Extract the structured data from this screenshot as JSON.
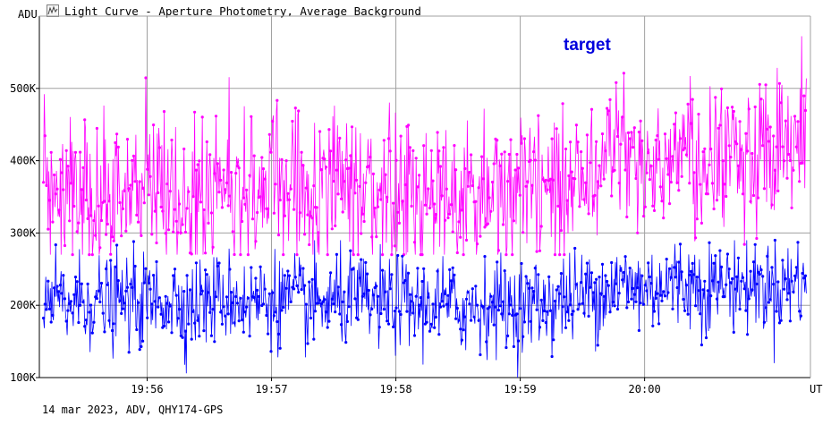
{
  "window": {
    "title": "Light Curve - Aperture Photometry, Average Background",
    "icon": "light-curve-icon"
  },
  "footer": "14 mar 2023, ADV, QHY174-GPS",
  "chart_data": {
    "type": "line",
    "title": "Light Curve - Aperture Photometry, Average Background",
    "ylabel": "ADU",
    "xlabel": "UT",
    "ylim": [
      100000,
      600000
    ],
    "xlim": [
      "19:55:08",
      "20:01:20"
    ],
    "yticks": [
      100000,
      200000,
      300000,
      400000,
      500000
    ],
    "ytick_labels": [
      "100K",
      "200K",
      "300K",
      "400K",
      "500K"
    ],
    "xticks": [
      "19:56",
      "19:57",
      "19:58",
      "19:59",
      "20:00"
    ],
    "annotation": "target",
    "grid": true,
    "colors": {
      "magenta_series": "#ff00ff",
      "blue_series": "#0000ff",
      "grid": "#a0a0a0",
      "annotation": "#0000dd"
    },
    "series": [
      {
        "color": "#ff00ff",
        "x": [
          "19:55:10",
          "19:55:20",
          "19:55:30",
          "19:55:40",
          "19:55:50",
          "19:56:00",
          "19:56:10",
          "19:56:20",
          "19:56:30",
          "19:56:40",
          "19:56:50",
          "19:57:00",
          "19:57:10",
          "19:57:20",
          "19:57:30",
          "19:57:40",
          "19:57:50",
          "19:58:00",
          "19:58:10",
          "19:58:20",
          "19:58:30",
          "19:58:40",
          "19:58:50",
          "19:59:00",
          "19:59:10",
          "19:59:20",
          "19:59:30",
          "19:59:40",
          "19:59:50",
          "20:00:00",
          "20:00:10",
          "20:00:20",
          "20:00:30",
          "20:00:40",
          "20:00:50",
          "20:01:00",
          "20:01:10",
          "20:01:18"
        ],
        "values": [
          372000,
          360000,
          368000,
          355000,
          365000,
          362000,
          370000,
          358000,
          366000,
          372000,
          360000,
          368000,
          364000,
          358000,
          362000,
          370000,
          356000,
          364000,
          352000,
          360000,
          348000,
          354000,
          356000,
          352000,
          358000,
          370000,
          382000,
          395000,
          402000,
          398000,
          408000,
          412000,
          400000,
          410000,
          406000,
          402000,
          412000,
          420000
        ],
        "min_observed": 270000,
        "max_observed": 582000
      },
      {
        "color": "#0000ff",
        "x": [
          "19:55:10",
          "19:55:20",
          "19:55:30",
          "19:55:40",
          "19:55:50",
          "19:56:00",
          "19:56:10",
          "19:56:20",
          "19:56:30",
          "19:56:40",
          "19:56:50",
          "19:57:00",
          "19:57:10",
          "19:57:20",
          "19:57:30",
          "19:57:40",
          "19:57:50",
          "19:58:00",
          "19:58:10",
          "19:58:20",
          "19:58:30",
          "19:58:40",
          "19:58:50",
          "19:59:00",
          "19:59:10",
          "19:59:20",
          "19:59:30",
          "19:59:40",
          "19:59:50",
          "20:00:00",
          "20:00:10",
          "20:00:20",
          "20:00:30",
          "20:00:40",
          "20:00:50",
          "20:01:00",
          "20:01:10",
          "20:01:18"
        ],
        "values": [
          205000,
          200000,
          208000,
          202000,
          206000,
          204000,
          210000,
          200000,
          206000,
          212000,
          204000,
          210000,
          206000,
          200000,
          204000,
          210000,
          200000,
          206000,
          198000,
          204000,
          196000,
          200000,
          202000,
          198000,
          202000,
          208000,
          214000,
          222000,
          228000,
          224000,
          230000,
          232000,
          224000,
          230000,
          228000,
          226000,
          230000,
          236000
        ],
        "min_observed": 100000,
        "max_observed": 290000
      }
    ]
  }
}
